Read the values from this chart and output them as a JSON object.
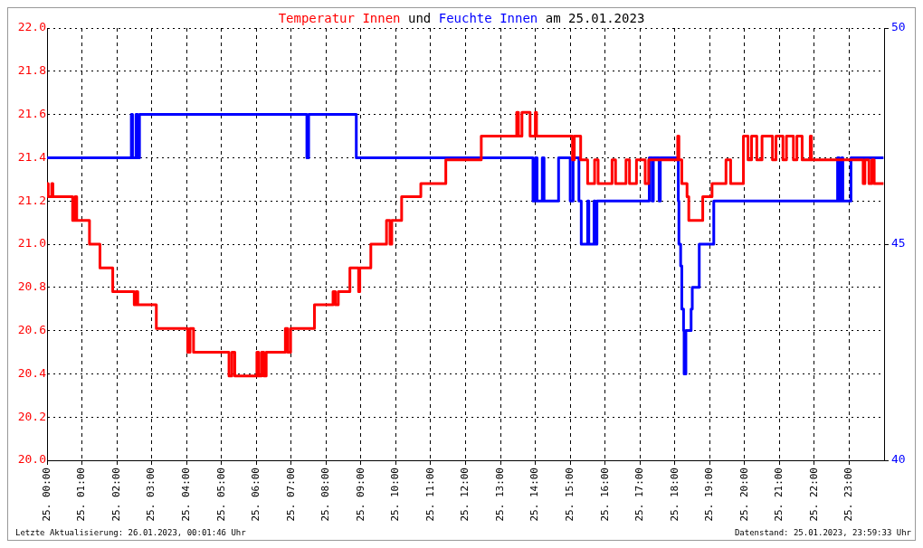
{
  "chart_data": {
    "type": "step",
    "title": "Temperatur Innen und Feuchte Innen am 25.01.2023",
    "xlim": [
      "2023-01-25T00:00",
      "2023-01-26T00:00"
    ],
    "xticks": [
      {
        "value": "2023-01-25T00:00",
        "label": "25. 00:00"
      },
      {
        "value": "2023-01-25T01:00",
        "label": "25. 01:00"
      },
      {
        "value": "2023-01-25T02:00",
        "label": "25. 02:00"
      },
      {
        "value": "2023-01-25T03:00",
        "label": "25. 03:00"
      },
      {
        "value": "2023-01-25T04:00",
        "label": "25. 04:00"
      },
      {
        "value": "2023-01-25T05:00",
        "label": "25. 05:00"
      },
      {
        "value": "2023-01-25T06:00",
        "label": "25. 06:00"
      },
      {
        "value": "2023-01-25T07:00",
        "label": "25. 07:00"
      },
      {
        "value": "2023-01-25T08:00",
        "label": "25. 08:00"
      },
      {
        "value": "2023-01-25T09:00",
        "label": "25. 09:00"
      },
      {
        "value": "2023-01-25T10:00",
        "label": "25. 10:00"
      },
      {
        "value": "2023-01-25T11:00",
        "label": "25. 11:00"
      },
      {
        "value": "2023-01-25T12:00",
        "label": "25. 12:00"
      },
      {
        "value": "2023-01-25T13:00",
        "label": "25. 13:00"
      },
      {
        "value": "2023-01-25T14:00",
        "label": "25. 14:00"
      },
      {
        "value": "2023-01-25T15:00",
        "label": "25. 15:00"
      },
      {
        "value": "2023-01-25T16:00",
        "label": "25. 16:00"
      },
      {
        "value": "2023-01-25T17:00",
        "label": "25. 17:00"
      },
      {
        "value": "2023-01-25T18:00",
        "label": "25. 18:00"
      },
      {
        "value": "2023-01-25T19:00",
        "label": "25. 19:00"
      },
      {
        "value": "2023-01-25T20:00",
        "label": "25. 20:00"
      },
      {
        "value": "2023-01-25T21:00",
        "label": "25. 21:00"
      },
      {
        "value": "2023-01-25T22:00",
        "label": "25. 22:00"
      },
      {
        "value": "2023-01-25T23:00",
        "label": "25. 23:00"
      }
    ],
    "ylim": [
      20,
      22
    ],
    "yticks": [
      {
        "value": 20,
        "label": "20.0"
      },
      {
        "value": 20.2,
        "label": "20.2"
      },
      {
        "value": 20.4,
        "label": "20.4"
      },
      {
        "value": 20.6,
        "label": "20.6"
      },
      {
        "value": 20.8,
        "label": "20.8"
      },
      {
        "value": 21,
        "label": "21.0"
      },
      {
        "value": 21.2,
        "label": "21.2"
      },
      {
        "value": 21.4,
        "label": "21.4"
      },
      {
        "value": 21.6,
        "label": "21.6"
      },
      {
        "value": 21.8,
        "label": "21.8"
      },
      {
        "value": 22,
        "label": "22.0"
      }
    ],
    "y2lim": [
      40,
      50
    ],
    "y2ticks": [
      40,
      45,
      50
    ],
    "grid": true,
    "legend": false,
    "marker": "none",
    "line_style": "solid",
    "annotations": [
      "Letzte Aktualisierung: 26.01.2023, 00:01:46 Uhr",
      "Datenstand: 25.01.2023, 23:59:33 Uhr"
    ],
    "series": [
      {
        "color": "#ff0000",
        "x": [
          "2023-01-25T00:00",
          "2023-01-25T00:02",
          "2023-01-25T00:08",
          "2023-01-25T00:10",
          "2023-01-25T00:44",
          "2023-01-25T00:48",
          "2023-01-25T00:51",
          "2023-01-25T01:13",
          "2023-01-25T01:31",
          "2023-01-25T01:53",
          "2023-01-25T02:30",
          "2023-01-25T02:33",
          "2023-01-25T02:36",
          "2023-01-25T03:08",
          "2023-01-25T04:02",
          "2023-01-25T04:06",
          "2023-01-25T04:12",
          "2023-01-25T05:13",
          "2023-01-25T05:18",
          "2023-01-25T05:23",
          "2023-01-25T06:01",
          "2023-01-25T06:04",
          "2023-01-25T06:09",
          "2023-01-25T06:13",
          "2023-01-25T06:17",
          "2023-01-25T06:50",
          "2023-01-25T06:54",
          "2023-01-25T06:59",
          "2023-01-25T07:40",
          "2023-01-25T08:12",
          "2023-01-25T08:16",
          "2023-01-25T08:21",
          "2023-01-25T08:41",
          "2023-01-25T08:56",
          "2023-01-25T08:58",
          "2023-01-25T09:17",
          "2023-01-25T09:44",
          "2023-01-25T09:50",
          "2023-01-25T09:53",
          "2023-01-25T10:10",
          "2023-01-25T10:43",
          "2023-01-25T11:26",
          "2023-01-25T12:27",
          "2023-01-25T13:28",
          "2023-01-25T13:31",
          "2023-01-25T13:37",
          "2023-01-25T13:51",
          "2023-01-25T14:00",
          "2023-01-25T14:02",
          "2023-01-25T15:04",
          "2023-01-25T15:07",
          "2023-01-25T15:18",
          "2023-01-25T15:30",
          "2023-01-25T15:42",
          "2023-01-25T15:48",
          "2023-01-25T16:12",
          "2023-01-25T16:18",
          "2023-01-25T16:36",
          "2023-01-25T16:42",
          "2023-01-25T16:54",
          "2023-01-25T17:09",
          "2023-01-25T17:15",
          "2023-01-25T18:05",
          "2023-01-25T18:07",
          "2023-01-25T18:12",
          "2023-01-25T18:21",
          "2023-01-25T18:24",
          "2023-01-25T18:48",
          "2023-01-25T19:04",
          "2023-01-25T19:28",
          "2023-01-25T19:36",
          "2023-01-25T19:58",
          "2023-01-25T20:06",
          "2023-01-25T20:12",
          "2023-01-25T20:21",
          "2023-01-25T20:30",
          "2023-01-25T20:48",
          "2023-01-25T20:54",
          "2023-01-25T21:06",
          "2023-01-25T21:12",
          "2023-01-25T21:24",
          "2023-01-25T21:30",
          "2023-01-25T21:39",
          "2023-01-25T21:53",
          "2023-01-25T21:55",
          "2023-01-25T23:24",
          "2023-01-25T23:27",
          "2023-01-25T23:34",
          "2023-01-25T23:39",
          "2023-01-25T23:43",
          "2023-01-25T23:59"
        ],
        "values": [
          21.28,
          21.22,
          21.28,
          21.22,
          21.11,
          21.22,
          21.11,
          21.0,
          20.89,
          20.78,
          20.72,
          20.78,
          20.72,
          20.61,
          20.5,
          20.61,
          20.5,
          20.39,
          20.5,
          20.39,
          20.5,
          20.39,
          20.5,
          20.39,
          20.5,
          20.61,
          20.5,
          20.61,
          20.72,
          20.78,
          20.72,
          20.78,
          20.89,
          20.78,
          20.89,
          21.0,
          21.11,
          21.0,
          21.11,
          21.22,
          21.28,
          21.39,
          21.5,
          21.61,
          21.5,
          21.61,
          21.5,
          21.61,
          21.5,
          21.39,
          21.5,
          21.39,
          21.28,
          21.39,
          21.28,
          21.39,
          21.28,
          21.39,
          21.28,
          21.39,
          21.28,
          21.39,
          21.5,
          21.39,
          21.28,
          21.22,
          21.11,
          21.22,
          21.28,
          21.39,
          21.28,
          21.5,
          21.39,
          21.5,
          21.39,
          21.5,
          21.39,
          21.5,
          21.39,
          21.5,
          21.39,
          21.5,
          21.39,
          21.5,
          21.39,
          21.28,
          21.39,
          21.28,
          21.39,
          21.28,
          21.28
        ]
      },
      {
        "color": "#0000ff",
        "axis": "y2",
        "x": [
          "2023-01-25T00:00",
          "2023-01-25T02:25",
          "2023-01-25T02:27",
          "2023-01-25T02:33",
          "2023-01-25T02:36",
          "2023-01-25T02:39",
          "2023-01-25T07:27",
          "2023-01-25T07:30",
          "2023-01-25T08:52",
          "2023-01-25T13:56",
          "2023-01-25T14:00",
          "2023-01-25T14:03",
          "2023-01-25T14:12",
          "2023-01-25T14:15",
          "2023-01-25T14:40",
          "2023-01-25T15:00",
          "2023-01-25T15:05",
          "2023-01-25T15:15",
          "2023-01-25T15:19",
          "2023-01-25T15:30",
          "2023-01-25T15:32",
          "2023-01-25T15:41",
          "2023-01-25T15:43",
          "2023-01-25T15:46",
          "2023-01-25T17:16",
          "2023-01-25T17:21",
          "2023-01-25T17:23",
          "2023-01-25T17:33",
          "2023-01-25T17:35",
          "2023-01-25T18:06",
          "2023-01-25T18:07",
          "2023-01-25T18:10",
          "2023-01-25T18:12",
          "2023-01-25T18:15",
          "2023-01-25T18:16",
          "2023-01-25T18:19",
          "2023-01-25T18:28",
          "2023-01-25T18:30",
          "2023-01-25T18:42",
          "2023-01-25T19:07",
          "2023-01-25T22:40",
          "2023-01-25T22:43",
          "2023-01-25T22:47",
          "2023-01-25T22:49",
          "2023-01-25T23:03",
          "2023-01-25T23:59"
        ],
        "values": [
          47,
          48,
          47,
          48,
          47,
          48,
          47,
          48,
          47,
          46,
          47,
          46,
          47,
          46,
          47,
          46,
          47,
          46,
          45,
          46,
          45,
          46,
          45,
          46,
          47,
          46,
          47,
          46,
          47,
          46,
          45,
          44.5,
          43.5,
          43,
          42,
          43,
          43.5,
          44,
          45,
          46,
          47,
          46,
          47,
          46,
          47,
          47
        ]
      }
    ]
  }
}
